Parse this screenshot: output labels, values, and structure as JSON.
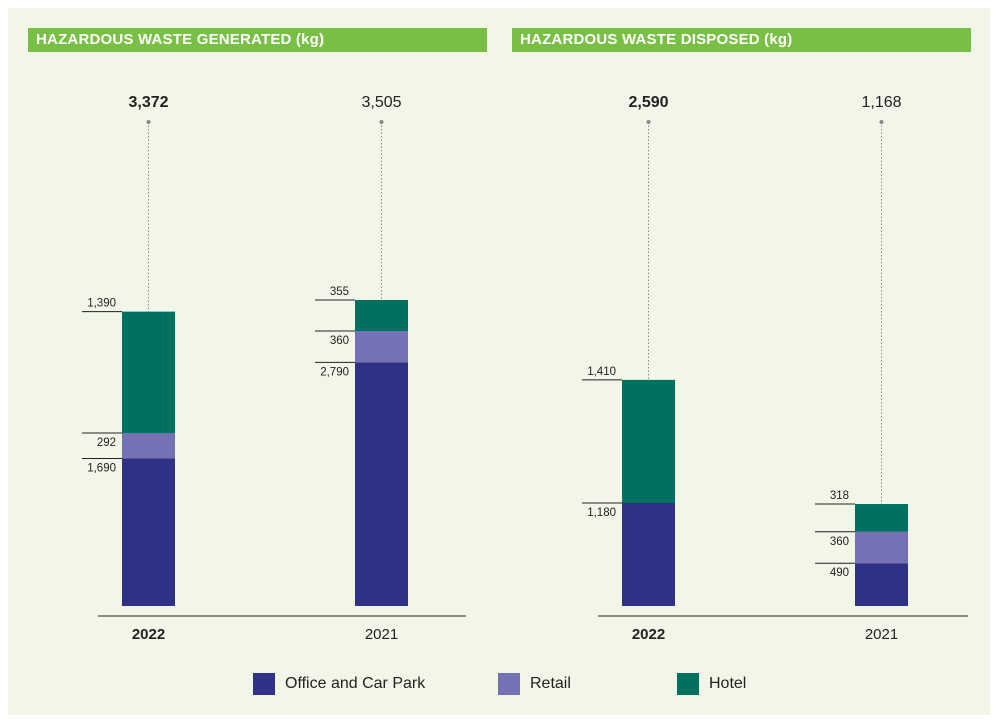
{
  "chart_data": [
    {
      "type": "bar",
      "stacked": true,
      "title": "HAZARDOUS WASTE GENERATED (kg)",
      "categories": [
        "2022",
        "2021"
      ],
      "totals": [
        "3,372",
        "3,505"
      ],
      "series": [
        {
          "name": "Office and Car Park",
          "values": [
            1690,
            2790
          ],
          "labels": [
            "1,690",
            "2,790"
          ]
        },
        {
          "name": "Retail",
          "values": [
            292,
            360
          ],
          "labels": [
            "292",
            "360"
          ]
        },
        {
          "name": "Hotel",
          "values": [
            1390,
            355
          ],
          "labels": [
            "1,390",
            "355"
          ]
        }
      ]
    },
    {
      "type": "bar",
      "stacked": true,
      "title": "HAZARDOUS WASTE DISPOSED (kg)",
      "categories": [
        "2022",
        "2021"
      ],
      "totals": [
        "2,590",
        "1,168"
      ],
      "series": [
        {
          "name": "Office and Car Park",
          "values": [
            1180,
            490
          ],
          "labels": [
            "1,180",
            "490"
          ]
        },
        {
          "name": "Retail",
          "values": [
            0,
            360
          ],
          "labels": [
            "",
            "360"
          ]
        },
        {
          "name": "Hotel",
          "values": [
            1410,
            318
          ],
          "labels": [
            "1,410",
            "318"
          ]
        }
      ]
    }
  ],
  "legend": [
    {
      "name": "Office and Car Park",
      "color": "#2e3184"
    },
    {
      "name": "Retail",
      "color": "#7571b5"
    },
    {
      "name": "Hotel",
      "color": "#007061"
    }
  ],
  "colors": {
    "office": "#2e3184",
    "retail": "#7571b5",
    "hotel": "#007061",
    "header_bg": "#79bf45",
    "panel_bg": "#f1f6e9"
  }
}
